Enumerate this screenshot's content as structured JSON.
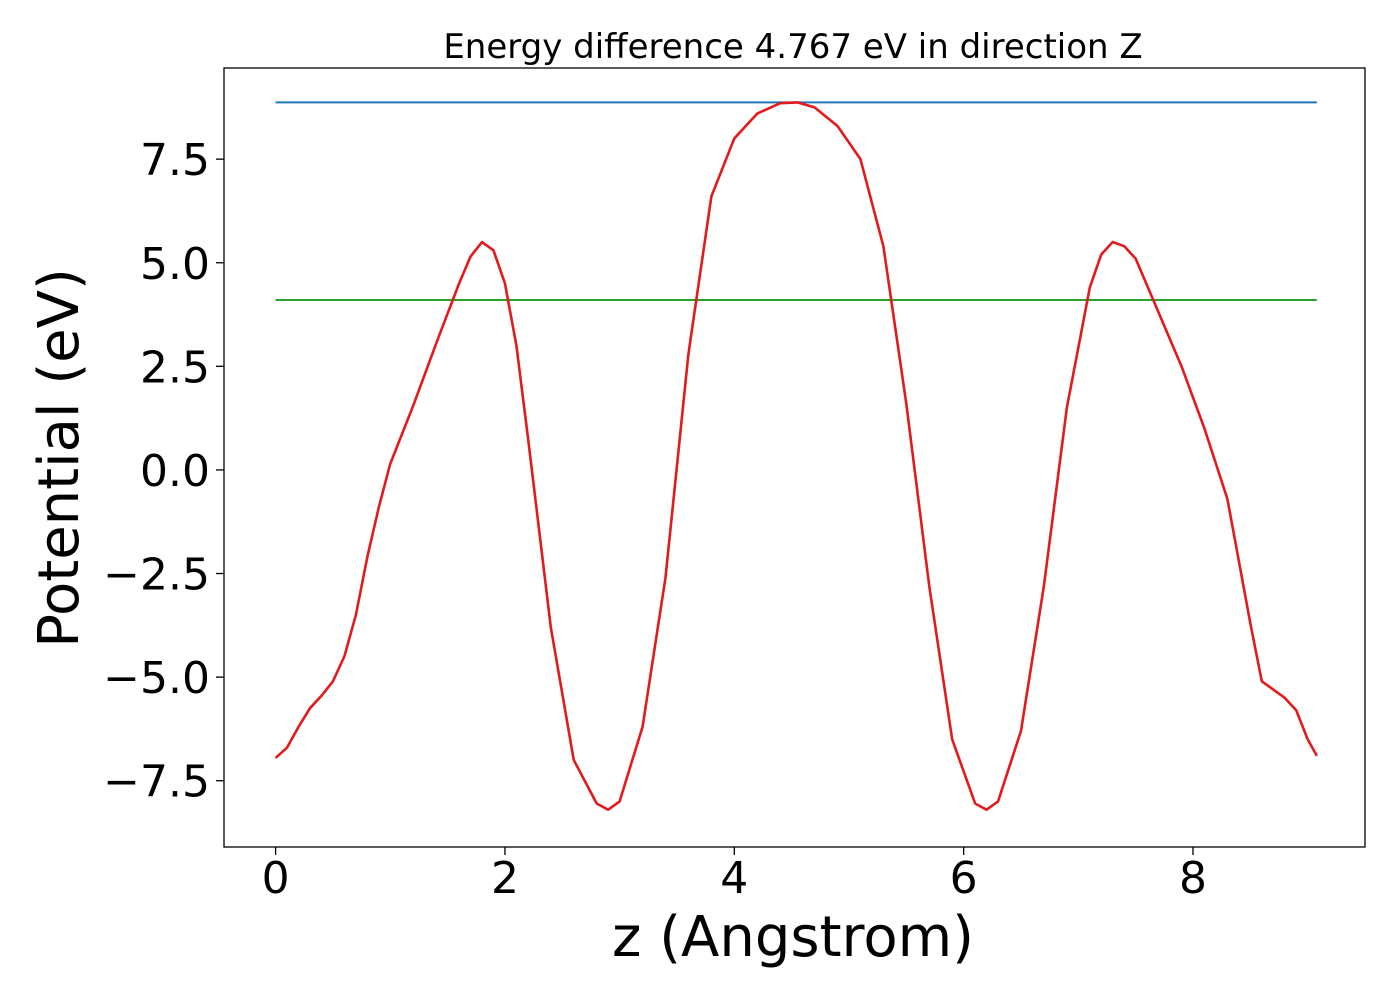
{
  "chart_data": {
    "type": "line",
    "title": "Energy difference 4.767 eV in direction Z",
    "xlabel": "z (Angstrom)",
    "ylabel": "Potential (eV)",
    "xlim": [
      -0.45,
      9.5
    ],
    "ylim": [
      -9.1,
      9.7
    ],
    "xticks": [
      0,
      2,
      4,
      6,
      8
    ],
    "xtick_labels": [
      "0",
      "2",
      "4",
      "6",
      "8"
    ],
    "yticks": [
      7.5,
      5.0,
      2.5,
      0.0,
      -2.5,
      -5.0,
      -7.5
    ],
    "ytick_labels": [
      "7.5",
      "5.0",
      "2.5",
      "0.0",
      "−2.5",
      "−5.0",
      "−7.5"
    ],
    "grid": false,
    "series": [
      {
        "color": "#1f77b4",
        "x": [
          0,
          9.08
        ],
        "y": [
          8.87,
          8.87
        ]
      },
      {
        "color": "#2ca02c",
        "x": [
          0,
          9.08
        ],
        "y": [
          4.1,
          4.1
        ]
      },
      {
        "color": "#e31a1c",
        "x": [
          0.0,
          0.1,
          0.2,
          0.3,
          0.4,
          0.5,
          0.6,
          0.7,
          0.8,
          0.9,
          1.0,
          1.2,
          1.4,
          1.6,
          1.7,
          1.8,
          1.9,
          2.0,
          2.1,
          2.2,
          2.4,
          2.6,
          2.8,
          2.9,
          3.0,
          3.2,
          3.4,
          3.6,
          3.8,
          4.0,
          4.2,
          4.4,
          4.55,
          4.7,
          4.9,
          5.1,
          5.3,
          5.5,
          5.7,
          5.9,
          6.1,
          6.2,
          6.3,
          6.5,
          6.7,
          6.9,
          7.1,
          7.2,
          7.3,
          7.4,
          7.5,
          7.7,
          7.9,
          8.1,
          8.3,
          8.5,
          8.6,
          8.7,
          8.8,
          8.9,
          9.0,
          9.08
        ],
        "y": [
          -6.95,
          -6.7,
          -6.2,
          -5.75,
          -5.45,
          -5.1,
          -4.5,
          -3.5,
          -2.1,
          -0.9,
          0.15,
          1.55,
          3.05,
          4.5,
          5.15,
          5.5,
          5.3,
          4.5,
          3.0,
          0.8,
          -3.8,
          -7.0,
          -8.05,
          -8.2,
          -8.0,
          -6.2,
          -2.6,
          2.8,
          6.6,
          8.0,
          8.6,
          8.85,
          8.87,
          8.75,
          8.3,
          7.5,
          5.4,
          1.6,
          -2.8,
          -6.5,
          -8.05,
          -8.2,
          -8.0,
          -6.3,
          -2.8,
          1.5,
          4.4,
          5.2,
          5.5,
          5.4,
          5.1,
          3.8,
          2.5,
          1.0,
          -0.7,
          -3.7,
          -5.1,
          -5.3,
          -5.5,
          -5.8,
          -6.5,
          -6.9
        ]
      }
    ]
  }
}
